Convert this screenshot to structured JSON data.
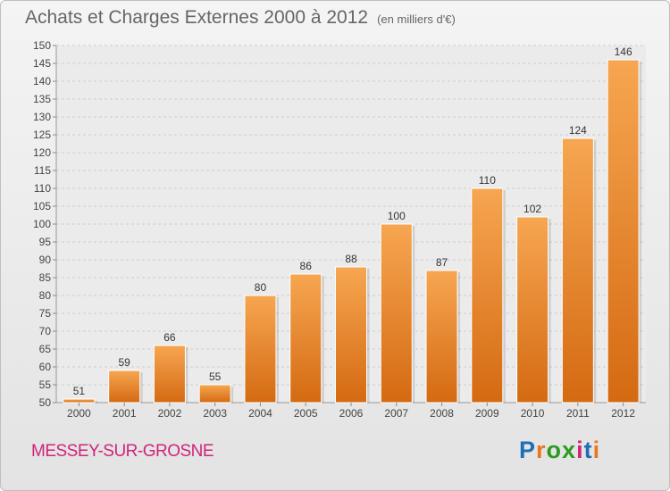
{
  "title": "Achats et Charges Externes 2000 à 2012",
  "subtitle": "(en milliers d'€)",
  "commune": "MESSEY-SUR-GROSNE",
  "logo": {
    "text": "Proxiti",
    "letters": [
      {
        "ch": "P",
        "color": "#1e6fb5"
      },
      {
        "ch": "r",
        "color": "#e87722"
      },
      {
        "ch": "o",
        "color": "#2e9b1f"
      },
      {
        "ch": "x",
        "color": "#2e9b1f"
      },
      {
        "ch": "i",
        "color": "#d0247a"
      },
      {
        "ch": "t",
        "color": "#1e6fb5"
      },
      {
        "ch": "i",
        "color": "#e87722"
      }
    ]
  },
  "colors": {
    "bar_light": "#f7a651",
    "bar_dark": "#d46a12",
    "grid": "#cccccc",
    "axis_text": "#444444",
    "label_text": "#333333"
  },
  "chart_data": {
    "type": "bar",
    "title": "Achats et Charges Externes 2000 à 2012",
    "subtitle": "(en milliers d'€)",
    "categories": [
      "2000",
      "2001",
      "2002",
      "2003",
      "2004",
      "2005",
      "2006",
      "2007",
      "2008",
      "2009",
      "2010",
      "2011",
      "2012"
    ],
    "values": [
      51,
      59,
      66,
      55,
      80,
      86,
      88,
      100,
      87,
      110,
      102,
      124,
      146
    ],
    "ylim": [
      50,
      150
    ],
    "yticks": [
      50,
      55,
      60,
      65,
      70,
      75,
      80,
      85,
      90,
      95,
      100,
      105,
      110,
      115,
      120,
      125,
      130,
      135,
      140,
      145,
      150
    ],
    "grid": "horizontal dashed",
    "xlabel": "",
    "ylabel": ""
  }
}
